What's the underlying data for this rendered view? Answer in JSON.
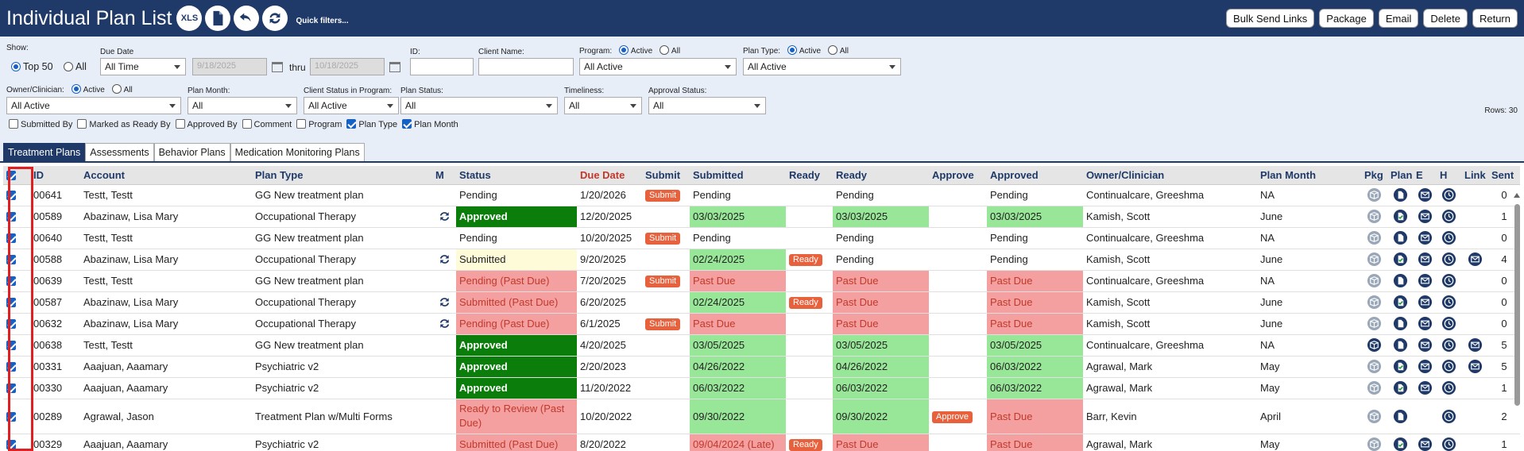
{
  "header": {
    "title": "Individual Plan List",
    "xls_label": "XLS",
    "quick_filters": "Quick filters...",
    "buttons": [
      "Bulk Send Links",
      "Package",
      "Email",
      "Delete",
      "Return"
    ]
  },
  "filters": {
    "show_label": "Show:",
    "show_top50": "Top 50",
    "show_all": "All",
    "due_date_label": "Due Date",
    "due_date_value": "All Time",
    "date_from": "9/18/2025",
    "thru_label": "thru",
    "date_to": "10/18/2025",
    "id_label": "ID:",
    "client_name_label": "Client Name:",
    "program_label": "Program:",
    "program_active": "Active",
    "program_all": "All",
    "program_value": "All Active",
    "plan_type_label": "Plan Type:",
    "plan_type_active": "Active",
    "plan_type_all": "All",
    "plan_type_value": "All Active",
    "owner_label": "Owner/Clinician:",
    "owner_active": "Active",
    "owner_all": "All",
    "owner_value": "All Active",
    "plan_month_label": "Plan Month:",
    "plan_month_value": "All",
    "client_status_label": "Client Status in Program:",
    "client_status_value": "All Active",
    "plan_status_label": "Plan Status:",
    "plan_status_value": "All",
    "timeliness_label": "Timeliness:",
    "timeliness_value": "All",
    "approval_status_label": "Approval Status:",
    "approval_status_value": "All",
    "rows_label": "Rows: 30",
    "columns": [
      {
        "label": "Submitted By",
        "checked": false
      },
      {
        "label": "Marked as Ready By",
        "checked": false
      },
      {
        "label": "Approved By",
        "checked": false
      },
      {
        "label": "Comment",
        "checked": false
      },
      {
        "label": "Program",
        "checked": false
      },
      {
        "label": "Plan Type",
        "checked": true
      },
      {
        "label": "Plan Month",
        "checked": true
      }
    ]
  },
  "tabs": [
    "Treatment Plans",
    "Assessments",
    "Behavior Plans",
    "Medication Monitoring Plans"
  ],
  "table": {
    "headers": [
      "ID",
      "Account",
      "Plan Type",
      "M",
      "Status",
      "Due Date",
      "Submit",
      "Submitted",
      "Ready",
      "Ready",
      "Approve",
      "Approved",
      "Owner/Clinician",
      "Plan Month",
      "Pkg",
      "Plan",
      "E",
      "H",
      "Link",
      "Sent"
    ],
    "submit_label": "Submit",
    "ready_label": "Ready",
    "approve_label": "Approve",
    "rows": [
      {
        "id": "00641",
        "account": "Testt, Testt",
        "plan_type": "GG New treatment plan",
        "m": false,
        "status": "Pending",
        "status_style": "plain",
        "due": "1/20/2026",
        "submit": true,
        "submitted": "Pending",
        "submitted_style": "plain",
        "ready_btn": false,
        "ready": "Pending",
        "ready_style": "plain",
        "approve": false,
        "approved": "Pending",
        "approved_style": "plain",
        "owner": "Continualcare, Greeshma",
        "month": "NA",
        "pkg_dark": false,
        "plan_style": "doc",
        "link": false,
        "sent": "0"
      },
      {
        "id": "00589",
        "account": "Abazinaw, Lisa Mary",
        "plan_type": "Occupational Therapy",
        "m": true,
        "status": "Approved",
        "status_style": "dgreen",
        "due": "12/20/2025",
        "submit": false,
        "submitted": "03/03/2025",
        "submitted_style": "green",
        "ready_btn": false,
        "ready": "03/03/2025",
        "ready_style": "green",
        "approve": false,
        "approved": "03/03/2025",
        "approved_style": "green",
        "owner": "Kamish, Scott",
        "month": "June",
        "pkg_dark": false,
        "plan_style": "check",
        "link": false,
        "sent": "1"
      },
      {
        "id": "00640",
        "account": "Testt, Testt",
        "plan_type": "GG New treatment plan",
        "m": false,
        "status": "Pending",
        "status_style": "plain",
        "due": "10/20/2025",
        "submit": true,
        "submitted": "Pending",
        "submitted_style": "plain",
        "ready_btn": false,
        "ready": "Pending",
        "ready_style": "plain",
        "approve": false,
        "approved": "Pending",
        "approved_style": "plain",
        "owner": "Continualcare, Greeshma",
        "month": "NA",
        "pkg_dark": false,
        "plan_style": "doc",
        "link": false,
        "sent": "0"
      },
      {
        "id": "00588",
        "account": "Abazinaw, Lisa Mary",
        "plan_type": "Occupational Therapy",
        "m": true,
        "status": "Submitted",
        "status_style": "yellow",
        "due": "9/20/2025",
        "submit": false,
        "submitted": "02/24/2025",
        "submitted_style": "green",
        "ready_btn": true,
        "ready": "Pending",
        "ready_style": "plain",
        "approve": false,
        "approved": "Pending",
        "approved_style": "plain",
        "owner": "Kamish, Scott",
        "month": "June",
        "pkg_dark": false,
        "plan_style": "check",
        "link": true,
        "sent": "4"
      },
      {
        "id": "00639",
        "account": "Testt, Testt",
        "plan_type": "GG New treatment plan",
        "m": false,
        "status": "Pending (Past Due)",
        "status_style": "red",
        "due": "7/20/2025",
        "submit": true,
        "submitted": "Past Due",
        "submitted_style": "red",
        "ready_btn": false,
        "ready": "Past Due",
        "ready_style": "red",
        "approve": false,
        "approved": "Past Due",
        "approved_style": "red",
        "owner": "Continualcare, Greeshma",
        "month": "NA",
        "pkg_dark": false,
        "plan_style": "doc",
        "link": false,
        "sent": "0"
      },
      {
        "id": "00587",
        "account": "Abazinaw, Lisa Mary",
        "plan_type": "Occupational Therapy",
        "m": true,
        "status": "Submitted (Past Due)",
        "status_style": "red",
        "due": "6/20/2025",
        "submit": false,
        "submitted": "02/24/2025",
        "submitted_style": "green",
        "ready_btn": true,
        "ready": "Past Due",
        "ready_style": "red",
        "approve": false,
        "approved": "Past Due",
        "approved_style": "red",
        "owner": "Kamish, Scott",
        "month": "June",
        "pkg_dark": false,
        "plan_style": "check",
        "link": false,
        "sent": "0"
      },
      {
        "id": "00632",
        "account": "Abazinaw, Lisa Mary",
        "plan_type": "Occupational Therapy",
        "m": true,
        "status": "Pending (Past Due)",
        "status_style": "red",
        "due": "6/1/2025",
        "submit": true,
        "submitted": "Past Due",
        "submitted_style": "red",
        "ready_btn": false,
        "ready": "Past Due",
        "ready_style": "red",
        "approve": false,
        "approved": "Past Due",
        "approved_style": "red",
        "owner": "Kamish, Scott",
        "month": "June",
        "pkg_dark": false,
        "plan_style": "doc",
        "link": false,
        "sent": "0"
      },
      {
        "id": "00638",
        "account": "Testt, Testt",
        "plan_type": "GG New treatment plan",
        "m": false,
        "status": "Approved",
        "status_style": "dgreen",
        "due": "4/20/2025",
        "submit": false,
        "submitted": "03/05/2025",
        "submitted_style": "green",
        "ready_btn": false,
        "ready": "03/05/2025",
        "ready_style": "green",
        "approve": false,
        "approved": "03/05/2025",
        "approved_style": "green",
        "owner": "Continualcare, Greeshma",
        "month": "NA",
        "pkg_dark": true,
        "plan_style": "doc",
        "link": true,
        "sent": "5"
      },
      {
        "id": "00331",
        "account": "Aaajuan, Aaamary",
        "plan_type": "Psychiatric v2",
        "m": false,
        "status": "Approved",
        "status_style": "dgreen",
        "due": "2/20/2023",
        "submit": false,
        "submitted": "04/26/2022",
        "submitted_style": "green",
        "ready_btn": false,
        "ready": "04/26/2022",
        "ready_style": "green",
        "approve": false,
        "approved": "06/03/2022",
        "approved_style": "green",
        "owner": "Agrawal, Mark",
        "month": "May",
        "pkg_dark": false,
        "plan_style": "check",
        "link": true,
        "sent": "5"
      },
      {
        "id": "00330",
        "account": "Aaajuan, Aaamary",
        "plan_type": "Psychiatric v2",
        "m": false,
        "status": "Approved",
        "status_style": "dgreen",
        "due": "11/20/2022",
        "submit": false,
        "submitted": "06/03/2022",
        "submitted_style": "green",
        "ready_btn": false,
        "ready": "06/03/2022",
        "ready_style": "green",
        "approve": false,
        "approved": "06/03/2022",
        "approved_style": "green",
        "owner": "Agrawal, Mark",
        "month": "May",
        "pkg_dark": false,
        "plan_style": "check",
        "link": false,
        "sent": "1"
      },
      {
        "id": "00289",
        "account": "Agrawal, Jason",
        "plan_type": "Treatment Plan w/Multi Forms",
        "m": false,
        "status": "Ready to Review (Past Due)",
        "status_style": "red",
        "due": "10/20/2022",
        "submit": false,
        "submitted": "09/30/2022",
        "submitted_style": "green",
        "ready_btn": false,
        "ready": "09/30/2022",
        "ready_style": "green",
        "approve": true,
        "approved": "Past Due",
        "approved_style": "red",
        "owner": "Barr, Kevin",
        "month": "April",
        "pkg_dark": false,
        "plan_style": "doc",
        "link": false,
        "sent": "2",
        "tall": true,
        "no_email": true
      },
      {
        "id": "00329",
        "account": "Aaajuan, Aaamary",
        "plan_type": "Psychiatric v2",
        "m": false,
        "status": "Submitted (Past Due)",
        "status_style": "red",
        "due": "8/20/2022",
        "submit": false,
        "submitted": "09/04/2024 (Late)",
        "submitted_style": "red",
        "ready_btn": true,
        "ready": "Past Due",
        "ready_style": "red",
        "approve": false,
        "approved": "Past Due",
        "approved_style": "red",
        "owner": "Agrawal, Mark",
        "month": "May",
        "pkg_dark": false,
        "plan_style": "check",
        "link": false,
        "sent": "1"
      }
    ]
  },
  "colors": {
    "header_bg": "#1f3a68",
    "approved_green": "#0b7d0b",
    "light_green": "#98e698",
    "past_due_red": "#f5a0a0",
    "action_orange": "#e8613d",
    "highlight_outline": "#e02020"
  }
}
